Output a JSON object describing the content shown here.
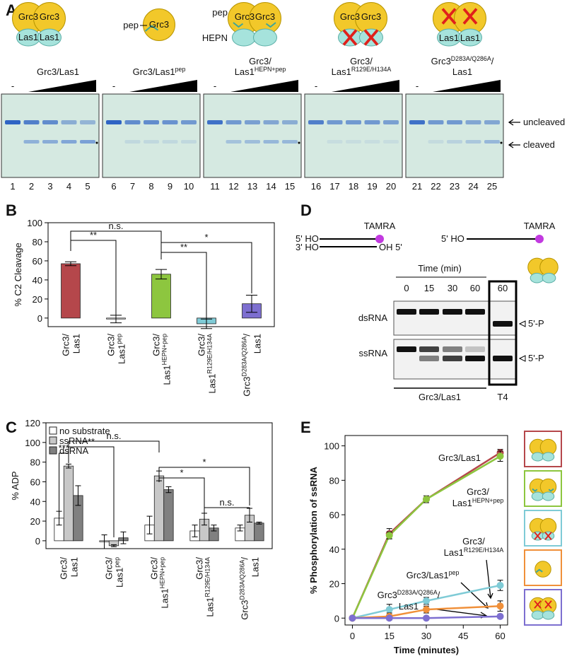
{
  "figure": {
    "panel_labels": [
      "A",
      "B",
      "C",
      "D",
      "E"
    ]
  },
  "panel_a": {
    "cartoons": [
      [
        "Grc3",
        "Grc3",
        "Las1",
        "Las1"
      ],
      [
        "pep",
        "Grc3"
      ],
      [
        "pep",
        "Grc3",
        "Grc3",
        "HEPN"
      ],
      [
        "Grc3",
        "Grc3"
      ],
      [
        "Las1",
        "Las1"
      ]
    ],
    "groups": [
      [
        [
          "Grc3/Las1"
        ]
      ],
      [
        [
          "Grc3/Las1",
          {
            "sup": "pep"
          }
        ]
      ],
      [
        [
          "Grc3/"
        ],
        [
          "Las1",
          {
            "sup": "HEPN+pep"
          }
        ]
      ],
      [
        [
          "Grc3/"
        ],
        [
          "Las1",
          {
            "sup": "R129E/H134A"
          }
        ]
      ],
      [
        [
          "Grc3",
          {
            "sup": "D283A/Q286A"
          },
          "/"
        ],
        [
          "Las1"
        ]
      ]
    ],
    "no_protein": "-",
    "lanes": [
      1,
      2,
      3,
      4,
      5,
      6,
      7,
      8,
      9,
      10,
      11,
      12,
      13,
      14,
      15,
      16,
      17,
      18,
      19,
      20,
      21,
      22,
      23,
      24,
      25
    ],
    "bands": [
      "uncleaved",
      "cleaved"
    ]
  },
  "panel_d": {
    "ds_labels": [
      "5' HO",
      "3' HO",
      "OH 5'",
      "TAMRA"
    ],
    "ss_labels": [
      "5' HO",
      "TAMRA"
    ],
    "time_title": "Time (min)",
    "times": [
      0,
      15,
      30,
      60,
      60
    ],
    "rows": [
      "dsRNA",
      "ssRNA"
    ],
    "product": [
      "5'-P",
      "5'-P"
    ],
    "enzymes": [
      "Grc3/Las1",
      "T4"
    ]
  },
  "chart_data": [
    {
      "type": "bar",
      "ylabel": "% C2 Cleavage",
      "categories": [
        [
          [
            "Grc3/"
          ],
          [
            "Las1"
          ]
        ],
        [
          [
            "Grc3/"
          ],
          [
            "Las1",
            {
              "sup": "pep"
            }
          ]
        ],
        [
          [
            "Grc3/"
          ],
          [
            "Las1",
            {
              "sup": "HEPN+pep"
            }
          ]
        ],
        [
          [
            "Grc3/"
          ],
          [
            "Las1",
            {
              "sup": "R129E/H134A"
            }
          ]
        ],
        [
          [
            "Grc3",
            {
              "sup": "D283A/Q286A"
            },
            "/"
          ],
          [
            "Las1"
          ]
        ]
      ],
      "values": [
        57,
        -1,
        46,
        -6,
        15
      ],
      "errors": [
        2,
        4,
        5,
        5,
        9
      ],
      "colors": [
        "#b5474b",
        "#ffffff",
        "#8dc63f",
        "#7fcbd6",
        "#7d6fd0"
      ],
      "ylim": [
        -9,
        100
      ],
      "yticks": [
        0,
        20,
        40,
        60,
        80,
        100
      ],
      "annotations": [
        {
          "from": 0,
          "to": 2,
          "label": "n.s."
        },
        {
          "from": 0,
          "to": 1,
          "label": "**"
        },
        {
          "from": 2,
          "to": 3,
          "label": "**"
        },
        {
          "from": 2,
          "to": 4,
          "label": "*"
        }
      ]
    },
    {
      "type": "bar",
      "ylabel": "% ADP",
      "categories": [
        [
          [
            "Grc3/"
          ],
          [
            "Las1"
          ]
        ],
        [
          [
            "Grc3/"
          ],
          [
            "Las1",
            {
              "sup": "pep"
            }
          ]
        ],
        [
          [
            "Grc3/"
          ],
          [
            "Las1",
            {
              "sup": "HEPN+pep"
            }
          ]
        ],
        [
          [
            "Grc3/"
          ],
          [
            "Las1",
            {
              "sup": "R129E/H134A"
            }
          ]
        ],
        [
          [
            "Grc3",
            {
              "sup": "D283A/Q286A"
            },
            "/"
          ],
          [
            "Las1"
          ]
        ]
      ],
      "series": [
        {
          "name": "no substrate",
          "color": "#ffffff",
          "values": [
            23,
            -1,
            16,
            10,
            13
          ],
          "errors": [
            7,
            7,
            9,
            6,
            3
          ]
        },
        {
          "name": "ssRNA",
          "color": "#c8c8c8",
          "values": [
            76,
            -5,
            66,
            22,
            26
          ],
          "errors": [
            2,
            1,
            5,
            6,
            7
          ]
        },
        {
          "name": "dsRNA",
          "color": "#808080",
          "values": [
            46,
            3,
            52,
            13,
            18
          ],
          "errors": [
            10,
            6,
            3,
            3,
            1
          ]
        }
      ],
      "ylim": [
        -8,
        120
      ],
      "yticks": [
        0,
        20,
        40,
        60,
        80,
        100,
        120
      ],
      "legend": "upper left",
      "annotations": [
        {
          "from": [
            0,
            0
          ],
          "to": [
            0,
            1
          ],
          "label": "***"
        },
        {
          "from": [
            0,
            1
          ],
          "to": [
            1,
            1
          ],
          "label": "**"
        },
        {
          "from": [
            0,
            1
          ],
          "to": [
            2,
            1
          ],
          "label": "n.s."
        },
        {
          "from": [
            2,
            1
          ],
          "to": [
            3,
            1
          ],
          "label": "*"
        },
        {
          "from": [
            2,
            1
          ],
          "to": [
            4,
            1
          ],
          "label": "*"
        },
        {
          "from": [
            3,
            1
          ],
          "to": [
            4,
            1
          ],
          "label": "n.s."
        }
      ]
    },
    {
      "type": "line",
      "xlabel": "Time (minutes)",
      "ylabel": "% Phosphorylation of ssRNA",
      "x": [
        0,
        15,
        30,
        60
      ],
      "xlim": [
        -3,
        63
      ],
      "xticks": [
        0,
        15,
        30,
        45,
        60
      ],
      "ylim": [
        -4,
        106
      ],
      "yticks": [
        0,
        20,
        40,
        60,
        80,
        100
      ],
      "series": [
        {
          "name": [
            [
              "Grc3/Las1"
            ]
          ],
          "color": "#b5474b",
          "values": [
            0,
            49,
            69,
            96
          ],
          "errors": [
            0,
            3,
            2,
            2
          ]
        },
        {
          "name": [
            [
              "Grc3/"
            ],
            [
              "Las1",
              {
                "sup": "HEPN+pep"
              }
            ]
          ],
          "color": "#8dc63f",
          "values": [
            0,
            48,
            69,
            94
          ],
          "errors": [
            0,
            2,
            1,
            3
          ]
        },
        {
          "name": [
            [
              "Grc3/"
            ],
            [
              "Las1",
              {
                "sup": "R129E/H134A"
              }
            ]
          ],
          "color": "#7fcbd6",
          "values": [
            0,
            5,
            10,
            19
          ],
          "errors": [
            0,
            3,
            2,
            3
          ]
        },
        {
          "name": [
            [
              "Grc3/Las1",
              {
                "sup": "pep"
              }
            ]
          ],
          "color": "#f0903a",
          "values": [
            0,
            1,
            5,
            7
          ],
          "errors": [
            0,
            2,
            2,
            3
          ]
        },
        {
          "name": [
            [
              "Grc3",
              {
                "sup": "D283A/Q286A"
              },
              "/"
            ],
            [
              "Las1"
            ]
          ],
          "color": "#7d6fd0",
          "values": [
            0,
            0,
            0,
            1
          ],
          "errors": [
            0,
            1,
            1,
            1
          ]
        }
      ]
    }
  ]
}
